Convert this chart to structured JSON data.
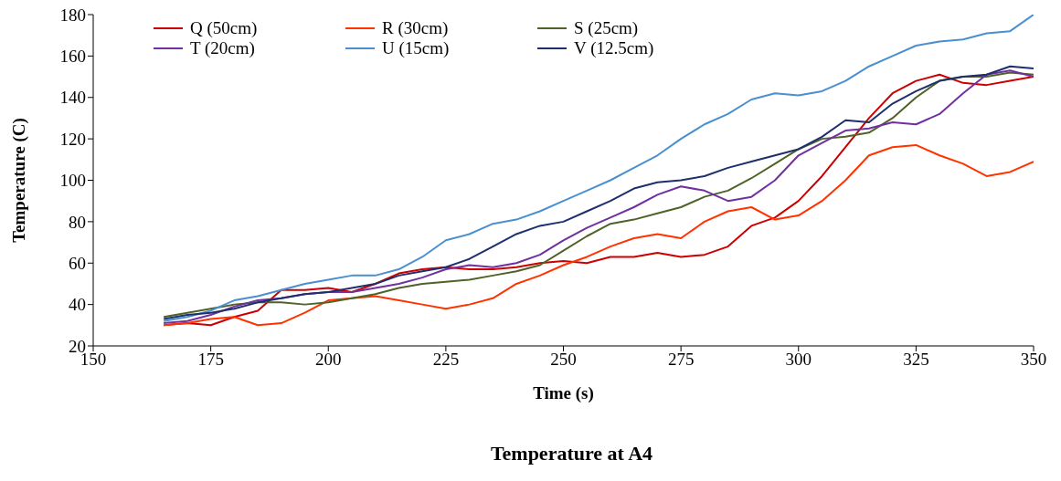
{
  "chart_data": {
    "type": "line",
    "title": "Temperature at A4",
    "xlabel": "Time (s)",
    "ylabel": "Temperature (C)",
    "x": [
      165,
      170,
      175,
      180,
      185,
      190,
      195,
      200,
      205,
      210,
      215,
      220,
      225,
      230,
      235,
      240,
      245,
      250,
      255,
      260,
      265,
      270,
      275,
      280,
      285,
      290,
      295,
      300,
      305,
      310,
      315,
      320,
      325,
      330,
      335,
      340,
      345,
      350
    ],
    "series": [
      {
        "name": "Q (50cm)",
        "color": "#cc0000",
        "values": [
          30,
          31,
          30,
          34,
          37,
          47,
          47,
          48,
          46,
          50,
          55,
          57,
          58,
          57,
          57,
          58,
          60,
          61,
          60,
          63,
          63,
          65,
          63,
          64,
          68,
          78,
          82,
          90,
          102,
          116,
          130,
          142,
          148,
          151,
          147,
          146,
          148,
          150
        ]
      },
      {
        "name": "R (30cm)",
        "color": "#ff3300",
        "values": [
          30,
          31,
          33,
          34,
          30,
          31,
          36,
          42,
          43,
          44,
          42,
          40,
          38,
          40,
          43,
          50,
          54,
          59,
          63,
          68,
          72,
          74,
          72,
          80,
          85,
          87,
          81,
          83,
          90,
          100,
          112,
          116,
          117,
          112,
          108,
          102,
          104,
          109
        ]
      },
      {
        "name": "S (25cm)",
        "color": "#4f6228",
        "values": [
          34,
          36,
          38,
          40,
          41,
          41,
          40,
          41,
          43,
          45,
          48,
          50,
          51,
          52,
          54,
          56,
          59,
          66,
          73,
          79,
          81,
          84,
          87,
          92,
          95,
          101,
          108,
          115,
          120,
          121,
          123,
          130,
          140,
          148,
          150,
          150,
          152,
          151
        ]
      },
      {
        "name": "T (20cm)",
        "color": "#7030a0",
        "values": [
          31,
          32,
          35,
          39,
          42,
          43,
          45,
          46,
          46,
          48,
          50,
          53,
          57,
          59,
          58,
          60,
          64,
          71,
          77,
          82,
          87,
          93,
          97,
          95,
          90,
          92,
          100,
          112,
          118,
          124,
          125,
          128,
          127,
          132,
          142,
          151,
          153,
          150
        ]
      },
      {
        "name": "U (15cm)",
        "color": "#4a8fd0",
        "values": [
          32,
          34,
          37,
          42,
          44,
          47,
          50,
          52,
          54,
          54,
          57,
          63,
          71,
          74,
          79,
          81,
          85,
          90,
          95,
          100,
          106,
          112,
          120,
          127,
          132,
          139,
          142,
          141,
          143,
          148,
          155,
          160,
          165,
          167,
          168,
          171,
          172,
          180
        ]
      },
      {
        "name": "V (12.5cm)",
        "color": "#1f2f6e",
        "values": [
          33,
          35,
          36,
          38,
          41,
          43,
          45,
          46,
          48,
          50,
          54,
          56,
          58,
          62,
          68,
          74,
          78,
          80,
          85,
          90,
          96,
          99,
          100,
          102,
          106,
          109,
          112,
          115,
          121,
          129,
          128,
          137,
          143,
          148,
          150,
          151,
          155,
          154
        ]
      }
    ],
    "xlim": [
      150,
      350
    ],
    "xticks": [
      150,
      175,
      200,
      225,
      250,
      275,
      300,
      325,
      350
    ],
    "ylim": [
      20,
      180
    ],
    "yticks": [
      20,
      40,
      60,
      80,
      100,
      120,
      140,
      160,
      180
    ],
    "grid": false,
    "legend": "top left",
    "marker": "none",
    "line_style": "solid"
  }
}
